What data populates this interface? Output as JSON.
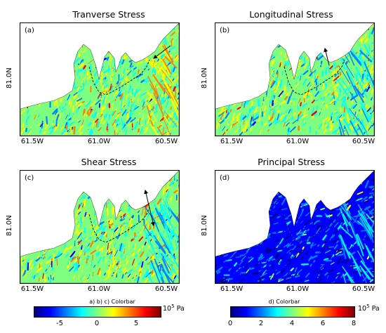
{
  "panels": [
    {
      "title": "Tranverse Stress",
      "tag": "(a)",
      "palette": "diverging",
      "arrow": "in"
    },
    {
      "title": "Longitudinal Stress",
      "tag": "(b)",
      "palette": "diverging",
      "arrow": "up"
    },
    {
      "title": "Shear Stress",
      "tag": "(c)",
      "palette": "diverging",
      "arrow": "both"
    },
    {
      "title": "Principal Stress",
      "tag": "(d)",
      "palette": "sequential",
      "arrow": "none"
    }
  ],
  "axes": {
    "x_ticks": [
      "61.5W",
      "61.0W",
      "60.5W"
    ],
    "y_tick": "81.0N"
  },
  "colorbars": [
    {
      "caption": "a) b) c) Colorbar",
      "ticks": [
        "-5",
        "0",
        "5"
      ],
      "range": [
        -8,
        8
      ],
      "unit": "10",
      "unit_exp": "5",
      "unit_suffix": " Pa"
    },
    {
      "caption": "d) Colorbar",
      "ticks": [
        "0",
        "2",
        "4",
        "6",
        "8"
      ],
      "range": [
        0,
        8
      ],
      "unit": "10",
      "unit_exp": "5",
      "unit_suffix": " Pa"
    }
  ],
  "colors": {
    "jet": [
      "#00007f",
      "#0000ff",
      "#007fff",
      "#00ffff",
      "#7fff7f",
      "#ffff00",
      "#ff7f00",
      "#ff0000",
      "#7f0000"
    ]
  },
  "chart_data": [
    {
      "type": "heatmap",
      "title": "Tranverse Stress",
      "xlabel": "",
      "ylabel": "",
      "x_ticks": [
        "61.5W",
        "61.0W",
        "60.5W"
      ],
      "y_ticks": [
        "81.0N"
      ],
      "colorbar_range": [
        -8,
        8
      ]
    },
    {
      "type": "heatmap",
      "title": "Longitudinal Stress",
      "xlabel": "",
      "ylabel": "",
      "x_ticks": [
        "61.5W",
        "61.0W",
        "60.5W"
      ],
      "y_ticks": [
        "81.0N"
      ],
      "colorbar_range": [
        -8,
        8
      ]
    },
    {
      "type": "heatmap",
      "title": "Shear Stress",
      "xlabel": "",
      "ylabel": "",
      "x_ticks": [
        "61.5W",
        "61.0W",
        "60.5W"
      ],
      "y_ticks": [
        "81.0N"
      ],
      "colorbar_range": [
        -8,
        8
      ]
    },
    {
      "type": "heatmap",
      "title": "Principal Stress",
      "xlabel": "",
      "ylabel": "",
      "x_ticks": [
        "61.5W",
        "61.0W",
        "60.5W"
      ],
      "y_ticks": [
        "81.0N"
      ],
      "colorbar_range": [
        0,
        8
      ]
    }
  ]
}
